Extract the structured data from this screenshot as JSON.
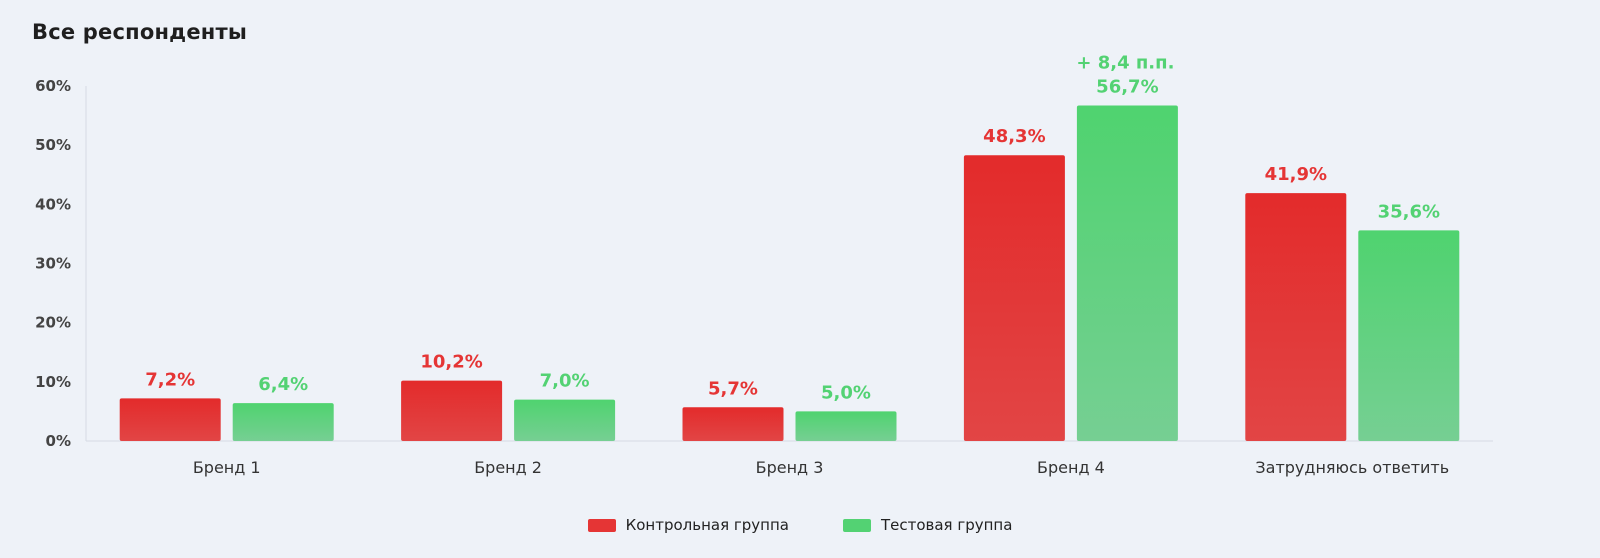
{
  "colors": {
    "control": "#e53535",
    "test": "#53d273",
    "axis_text": "#444444",
    "gridline": "#d5dbe4"
  },
  "chart_data": {
    "type": "bar",
    "title": "Все респонденты",
    "categories": [
      "Бренд 1",
      "Бренд 2",
      "Бренд 3",
      "Бренд 4",
      "Затрудняюсь ответить"
    ],
    "series": [
      {
        "name": "Контрольная группа",
        "values": [
          7.2,
          10.2,
          5.7,
          48.3,
          41.9
        ],
        "labels": [
          "7,2%",
          "10,2%",
          "5,7%",
          "48,3%",
          "41,9%"
        ]
      },
      {
        "name": "Тестовая группа",
        "values": [
          6.4,
          7.0,
          5.0,
          56.7,
          35.6
        ],
        "labels": [
          "6,4%",
          "7,0%",
          "5,0%",
          "56,7%",
          "35,6%"
        ]
      }
    ],
    "annotations": [
      {
        "category": "Бренд 4",
        "series": "Тестовая группа",
        "text": "+ 8,4 п.п."
      }
    ],
    "yticks": [
      "0%",
      "10%",
      "20%",
      "30%",
      "40%",
      "50%",
      "60%"
    ],
    "ylim": [
      0,
      60
    ],
    "grid": false,
    "legend_position": "bottom-center"
  }
}
